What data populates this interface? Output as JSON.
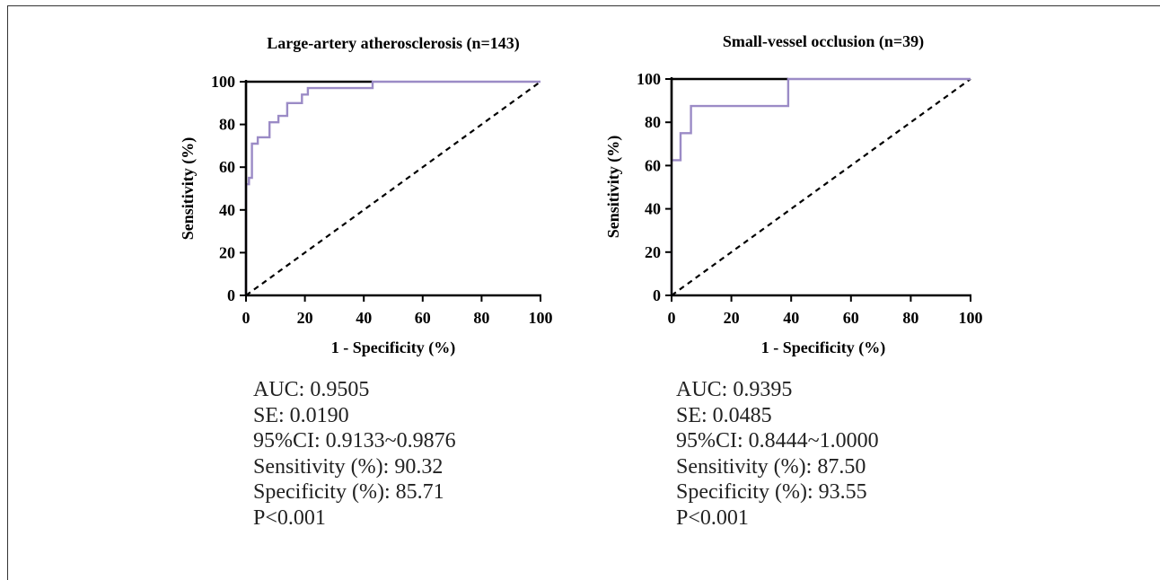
{
  "chart_data": [
    {
      "type": "line",
      "title": "Large-artery atherosclerosis (n=143)",
      "xlabel": "1 - Specificity (%)",
      "ylabel": "Sensitivity (%)",
      "xlim": [
        0,
        100
      ],
      "ylim": [
        0,
        100
      ],
      "xticks": [
        "0",
        "20",
        "40",
        "60",
        "80",
        "100"
      ],
      "yticks": [
        "0",
        "20",
        "40",
        "60",
        "80",
        "100"
      ],
      "grid": false,
      "series": [
        {
          "color": "#9b8bc6",
          "style": "step",
          "x": [
            0,
            0,
            1,
            1,
            2,
            2,
            4,
            4,
            8,
            8,
            11,
            11,
            14,
            14,
            19,
            19,
            21,
            21,
            43,
            43,
            100
          ],
          "y": [
            0,
            52,
            52,
            55,
            55,
            71,
            71,
            74,
            74,
            81,
            81,
            84,
            84,
            90,
            90,
            94,
            94,
            97,
            97,
            100,
            100
          ]
        },
        {
          "color": "#000000",
          "style": "step",
          "x": [
            0,
            0,
            43
          ],
          "y": [
            0,
            100,
            100
          ]
        },
        {
          "color": "#000000",
          "style": "dashed",
          "x": [
            0,
            100
          ],
          "y": [
            0,
            100
          ]
        }
      ],
      "stats": [
        "AUC: 0.9505",
        "SE: 0.0190",
        "95%CI: 0.9133~0.9876",
        "Sensitivity (%): 90.32",
        "Specificity (%): 85.71",
        "P<0.001"
      ]
    },
    {
      "type": "line",
      "title": "Small-vessel occlusion (n=39)",
      "xlabel": "1 - Specificity (%)",
      "ylabel": "Sensitivity (%)",
      "xlim": [
        0,
        100
      ],
      "ylim": [
        0,
        100
      ],
      "xticks": [
        "0",
        "20",
        "40",
        "60",
        "80",
        "100"
      ],
      "yticks": [
        "0",
        "20",
        "40",
        "60",
        "80",
        "100"
      ],
      "grid": false,
      "series": [
        {
          "color": "#9b8bc6",
          "style": "step",
          "x": [
            0,
            0,
            3,
            3,
            6.5,
            6.5,
            39,
            39,
            100
          ],
          "y": [
            0,
            62.5,
            62.5,
            75,
            75,
            87.5,
            87.5,
            100,
            100
          ]
        },
        {
          "color": "#000000",
          "style": "step",
          "x": [
            0,
            0,
            39
          ],
          "y": [
            62.5,
            100,
            100
          ]
        },
        {
          "color": "#000000",
          "style": "dashed",
          "x": [
            0,
            100
          ],
          "y": [
            0,
            100
          ]
        }
      ],
      "stats": [
        "AUC: 0.9395",
        "SE: 0.0485",
        "95%CI: 0.8444~1.0000",
        "Sensitivity (%): 87.50",
        "Specificity (%): 93.55",
        "P<0.001"
      ]
    }
  ]
}
